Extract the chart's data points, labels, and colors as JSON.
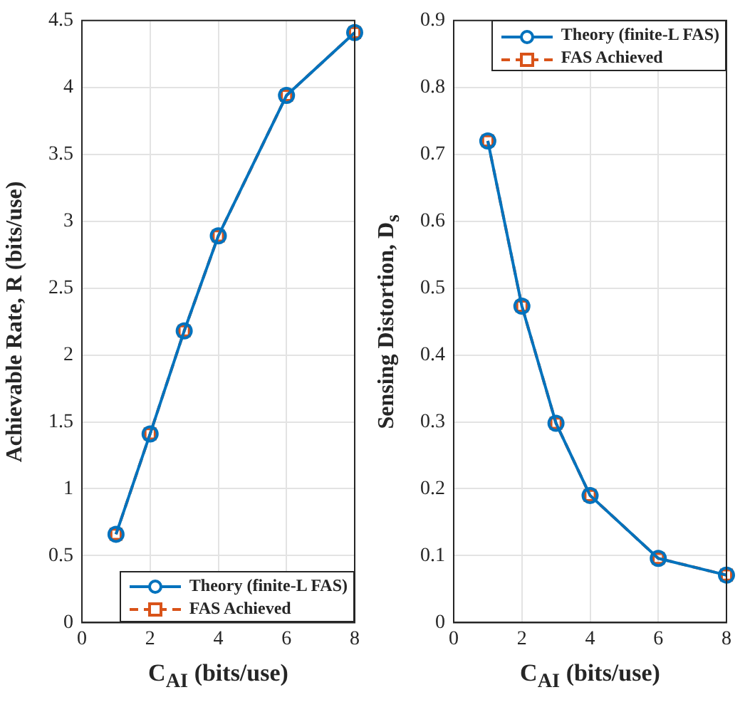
{
  "chart_data": [
    {
      "type": "line",
      "x": [
        1,
        2,
        3,
        4,
        6,
        8
      ],
      "series": [
        {
          "name": "Theory (finite-L FAS)",
          "color": "#0072bd",
          "marker": "circle",
          "line_style": "solid",
          "values": [
            0.66,
            1.41,
            2.18,
            2.89,
            3.94,
            4.41
          ]
        },
        {
          "name": "FAS Achieved",
          "color": "#d95319",
          "marker": "square",
          "line_style": "dashed",
          "values": [
            0.66,
            1.41,
            2.18,
            2.89,
            3.94,
            4.41
          ]
        }
      ],
      "xlim": [
        0,
        8
      ],
      "xticks": [
        0,
        2,
        4,
        6,
        8
      ],
      "ylim": [
        0,
        4.5
      ],
      "yticks": [
        0,
        0.5,
        1,
        1.5,
        2,
        2.5,
        3,
        3.5,
        4,
        4.5
      ],
      "grid": true,
      "legend": "bottom right",
      "xlabel": "C$_{AI}$ (bits/use)",
      "ylabel": "Achievable Rate, R (bits/use)"
    },
    {
      "type": "line",
      "x": [
        1,
        2,
        3,
        4,
        6,
        8
      ],
      "series": [
        {
          "name": "Theory (finite-L FAS)",
          "color": "#0072bd",
          "marker": "circle",
          "line_style": "solid",
          "values": [
            0.72,
            0.473,
            0.298,
            0.19,
            0.096,
            0.071
          ]
        },
        {
          "name": "FAS Achieved",
          "color": "#d95319",
          "marker": "square",
          "line_style": "dashed",
          "values": [
            0.72,
            0.473,
            0.298,
            0.19,
            0.096,
            0.071
          ]
        }
      ],
      "xlim": [
        0,
        8
      ],
      "xticks": [
        0,
        2,
        4,
        6,
        8
      ],
      "ylim": [
        0,
        0.9
      ],
      "yticks": [
        0,
        0.1,
        0.2,
        0.3,
        0.4,
        0.5,
        0.6,
        0.7,
        0.8,
        0.9
      ],
      "grid": true,
      "legend": "top right",
      "xlabel": "C$_{AI}$ (bits/use)",
      "ylabel": "Sensing Distortion, D$_{s}$"
    }
  ]
}
